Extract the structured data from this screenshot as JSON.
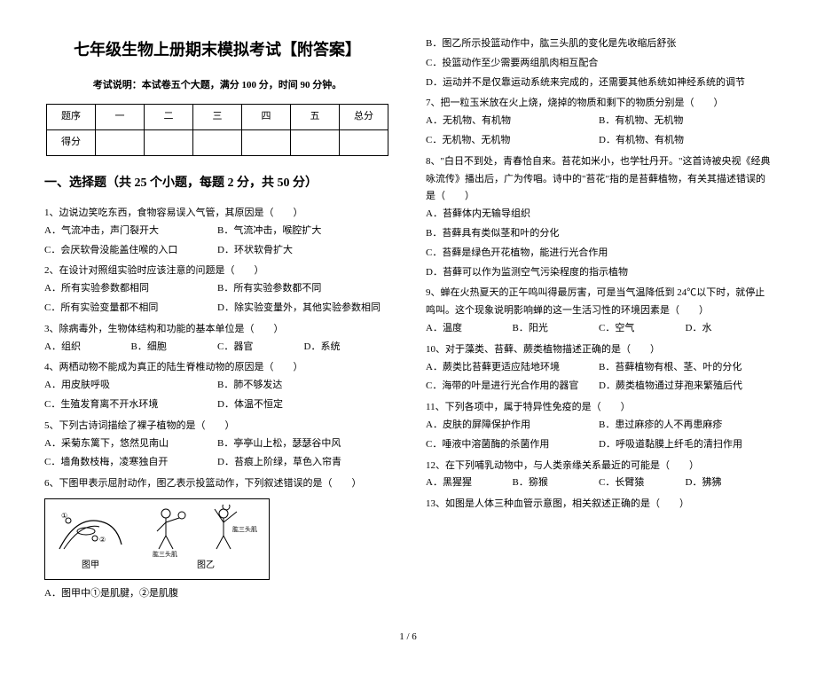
{
  "title": "七年级生物上册期末模拟考试【附答案】",
  "exam_note": "考试说明：本试卷五个大题，满分 100 分，时间 90 分钟。",
  "score_table": {
    "headers": [
      "题序",
      "一",
      "二",
      "三",
      "四",
      "五",
      "总分"
    ],
    "row_label": "得分"
  },
  "section1_title": "一、选择题（共 25 个小题，每题 2 分，共 50 分）",
  "left_questions": [
    {
      "stem": "1、边说边笑吃东西，食物容易误入气管，其原因是（　　）",
      "opts": [
        "A．气流冲击，声门裂开大",
        "B．气流冲击，喉腔扩大",
        "C．会厌软骨没能盖住喉的入口",
        "D．环状软骨扩大"
      ],
      "layout": "opt-2"
    },
    {
      "stem": "2、在设计对照组实验时应该注意的问题是（　　）",
      "opts": [
        "A．所有实验参数都相同",
        "B．所有实验参数都不同",
        "C．所有实验变量都不相同",
        "D．除实验变量外，其他实验参数相同"
      ],
      "layout": "opt-2"
    },
    {
      "stem": "3、除病毒外，生物体结构和功能的基本单位是（　　）",
      "opts": [
        "A．组织",
        "B．细胞",
        "C．器官",
        "D．系统"
      ],
      "layout": "opt-4"
    },
    {
      "stem": "4、两栖动物不能成为真正的陆生脊椎动物的原因是（　　）",
      "opts": [
        "A．用皮肤呼吸",
        "B．肺不够发达",
        "C．生殖发育离不开水环境",
        "D．体温不恒定"
      ],
      "layout": "opt-2"
    },
    {
      "stem": "5、下列古诗词描绘了裸子植物的是（　　）",
      "opts": [
        "A．采菊东篱下，悠然见南山",
        "B．亭亭山上松，瑟瑟谷中风",
        "C．墙角数枝梅，凌寒独自开",
        "D．苔痕上阶绿，草色入帘青"
      ],
      "layout": "opt-2"
    },
    {
      "stem": "6、下图甲表示屈肘动作，图乙表示投篮动作，下列叙述错误的是（　　）",
      "figure": true,
      "opts": [
        "A．图甲中①是肌腱，②是肌腹"
      ],
      "layout": "opt-full"
    }
  ],
  "right_questions": [
    {
      "opts": [
        "B．图乙所示投篮动作中，肱三头肌的变化是先收缩后舒张",
        "C．投篮动作至少需要两组肌肉相互配合",
        "D．运动并不是仅靠运动系统来完成的，还需要其他系统如神经系统的调节"
      ],
      "layout": "opt-full"
    },
    {
      "stem": "7、把一粒玉米放在火上烧，烧掉的物质和剩下的物质分别是（　　）",
      "opts": [
        "A．无机物、有机物",
        "B．有机物、无机物",
        "C．无机物、无机物",
        "D．有机物、有机物"
      ],
      "layout": "opt-2"
    },
    {
      "stem": "8、\"白日不到处，青春恰自来。苔花如米小，也学牡丹开。\"这首诗被央视《经典咏流传》播出后，广为传唱。诗中的\"苔花\"指的是苔藓植物，有关其描述错误的是（　　）",
      "opts": [
        "A．苔藓体内无输导组织",
        "B．苔藓具有类似茎和叶的分化",
        "C．苔藓是绿色开花植物，能进行光合作用",
        "D．苔藓可以作为监测空气污染程度的指示植物"
      ],
      "layout": "opt-full"
    },
    {
      "stem": "9、蝉在火热夏天的正午鸣叫得最厉害，可是当气温降低到 24℃以下时，就停止鸣叫。这个现象说明影响蝉的这一生活习性的环境因素是（　　）",
      "opts": [
        "A．温度",
        "B．阳光",
        "C．空气",
        "D．水"
      ],
      "layout": "opt-4"
    },
    {
      "stem": "10、对于藻类、苔藓、蕨类植物描述正确的是（　　）",
      "opts": [
        "A．蕨类比苔藓更适应陆地环境",
        "B．苔藓植物有根、茎、叶的分化",
        "C．海带的叶是进行光合作用的器官",
        "D．蕨类植物通过芽孢来繁殖后代"
      ],
      "layout": "opt-2"
    },
    {
      "stem": "11、下列各项中，属于特异性免疫的是（　　）",
      "opts": [
        "A．皮肤的屏障保护作用",
        "B．患过麻疹的人不再患麻疹",
        "C．唾液中溶菌酶的杀菌作用",
        "D．呼吸道黏膜上纤毛的清扫作用"
      ],
      "layout": "opt-2"
    },
    {
      "stem": "12、在下列哺乳动物中，与人类亲缘关系最近的可能是（　　）",
      "opts": [
        "A．黑猩猩",
        "B．猕猴",
        "C．长臂猿",
        "D．狒狒"
      ],
      "layout": "opt-4"
    },
    {
      "stem": "13、如图是人体三种血管示意图，相关叙述正确的是（　　）",
      "opts": [],
      "layout": "opt-full"
    }
  ],
  "figure_labels": {
    "left": "图甲",
    "right": "图乙",
    "anno1": "肱三头肌",
    "anno2": "肱三头肌"
  },
  "page_num": "1 / 6"
}
